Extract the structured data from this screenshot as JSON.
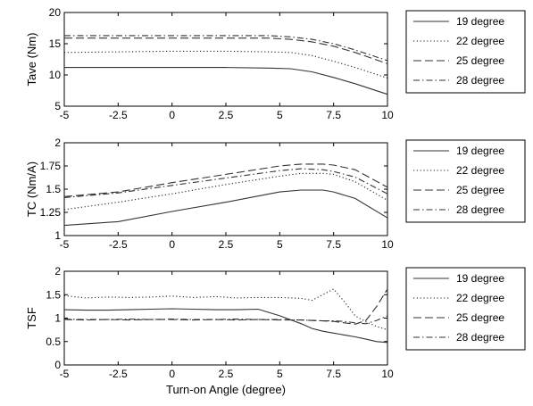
{
  "chart_data": [
    {
      "type": "line",
      "title": "",
      "xlabel": "",
      "ylabel": "Tave (Nm)",
      "xlim": [
        -5,
        10
      ],
      "ylim": [
        5,
        20
      ],
      "xticks": [
        "-5",
        "-2.5",
        "0",
        "2.5",
        "5",
        "7.5",
        "10"
      ],
      "yticks": [
        "5",
        "10",
        "15",
        "20"
      ],
      "grid": false,
      "legend": "right",
      "x": [
        -5,
        -2.5,
        0,
        2.5,
        4.5,
        5.5,
        6.5,
        7.5,
        8.5,
        10
      ],
      "series": [
        {
          "name": "19 degree",
          "style": "solid",
          "values": [
            11.2,
            11.2,
            11.2,
            11.2,
            11.1,
            11.0,
            10.5,
            9.6,
            8.6,
            6.9
          ]
        },
        {
          "name": "22 degree",
          "style": "dotted",
          "values": [
            13.6,
            13.7,
            13.8,
            13.8,
            13.7,
            13.6,
            13.1,
            12.2,
            11.2,
            9.5
          ]
        },
        {
          "name": "25 degree",
          "style": "dashed",
          "values": [
            15.9,
            15.9,
            15.9,
            15.9,
            15.9,
            15.7,
            15.3,
            14.6,
            13.6,
            11.8
          ]
        },
        {
          "name": "28 degree",
          "style": "dashdot",
          "values": [
            16.3,
            16.3,
            16.3,
            16.3,
            16.3,
            16.1,
            15.7,
            15.0,
            14.0,
            12.3
          ]
        }
      ]
    },
    {
      "type": "line",
      "title": "",
      "xlabel": "",
      "ylabel": "TC (Nm/A)",
      "xlim": [
        -5,
        10
      ],
      "ylim": [
        1,
        2
      ],
      "xticks": [
        "-5",
        "-2.5",
        "0",
        "2.5",
        "5",
        "7.5",
        "10"
      ],
      "yticks": [
        "1",
        "1.25",
        "1.5",
        "1.75",
        "2"
      ],
      "grid": false,
      "legend": "right",
      "x": [
        -5,
        -2.5,
        0,
        2.5,
        5,
        6,
        7,
        7.5,
        8.5,
        10
      ],
      "series": [
        {
          "name": "19 degree",
          "style": "solid",
          "values": [
            1.11,
            1.15,
            1.26,
            1.36,
            1.47,
            1.49,
            1.49,
            1.47,
            1.4,
            1.19
          ]
        },
        {
          "name": "22 degree",
          "style": "dotted",
          "values": [
            1.28,
            1.36,
            1.45,
            1.55,
            1.64,
            1.67,
            1.67,
            1.66,
            1.58,
            1.38
          ]
        },
        {
          "name": "25 degree",
          "style": "dashed",
          "values": [
            1.42,
            1.47,
            1.57,
            1.66,
            1.75,
            1.77,
            1.77,
            1.76,
            1.71,
            1.52
          ]
        },
        {
          "name": "28 degree",
          "style": "dashdot",
          "values": [
            1.41,
            1.46,
            1.54,
            1.62,
            1.7,
            1.72,
            1.71,
            1.69,
            1.63,
            1.45
          ]
        }
      ]
    },
    {
      "type": "line",
      "title": "",
      "xlabel": "Turn-on Angle (degree)",
      "ylabel": "TSF",
      "xlim": [
        -5,
        10
      ],
      "ylim": [
        0,
        2
      ],
      "xticks": [
        "-5",
        "-2.5",
        "0",
        "2.5",
        "5",
        "7.5",
        "10"
      ],
      "yticks": [
        "0",
        "0.5",
        "1",
        "1.5",
        "2"
      ],
      "grid": false,
      "legend": "right",
      "x": [
        -5,
        -4,
        -3,
        -2,
        -1,
        0,
        1,
        2,
        3,
        4,
        5,
        6,
        6.5,
        7,
        7.5,
        8,
        8.5,
        9,
        9.5,
        10
      ],
      "series": [
        {
          "name": "19 degree",
          "style": "solid",
          "values": [
            1.18,
            1.17,
            1.17,
            1.18,
            1.19,
            1.2,
            1.19,
            1.18,
            1.18,
            1.19,
            1.05,
            0.88,
            0.78,
            0.72,
            0.68,
            0.64,
            0.6,
            0.55,
            0.5,
            0.48
          ]
        },
        {
          "name": "22 degree",
          "style": "dotted",
          "values": [
            1.48,
            1.43,
            1.45,
            1.44,
            1.45,
            1.47,
            1.44,
            1.46,
            1.43,
            1.44,
            1.44,
            1.42,
            1.38,
            1.5,
            1.62,
            1.35,
            1.05,
            0.92,
            0.82,
            0.75
          ]
        },
        {
          "name": "25 degree",
          "style": "dashed",
          "values": [
            0.97,
            0.96,
            0.97,
            0.96,
            0.97,
            0.97,
            0.96,
            0.97,
            0.96,
            0.97,
            0.96,
            0.96,
            0.95,
            0.94,
            0.93,
            0.9,
            0.87,
            0.95,
            1.25,
            1.62
          ]
        },
        {
          "name": "28 degree",
          "style": "dashdot",
          "values": [
            0.98,
            0.97,
            0.97,
            0.98,
            0.97,
            0.98,
            0.97,
            0.97,
            0.98,
            0.97,
            0.97,
            0.96,
            0.95,
            0.94,
            0.94,
            0.93,
            0.9,
            0.88,
            0.95,
            1.05
          ]
        }
      ]
    }
  ]
}
